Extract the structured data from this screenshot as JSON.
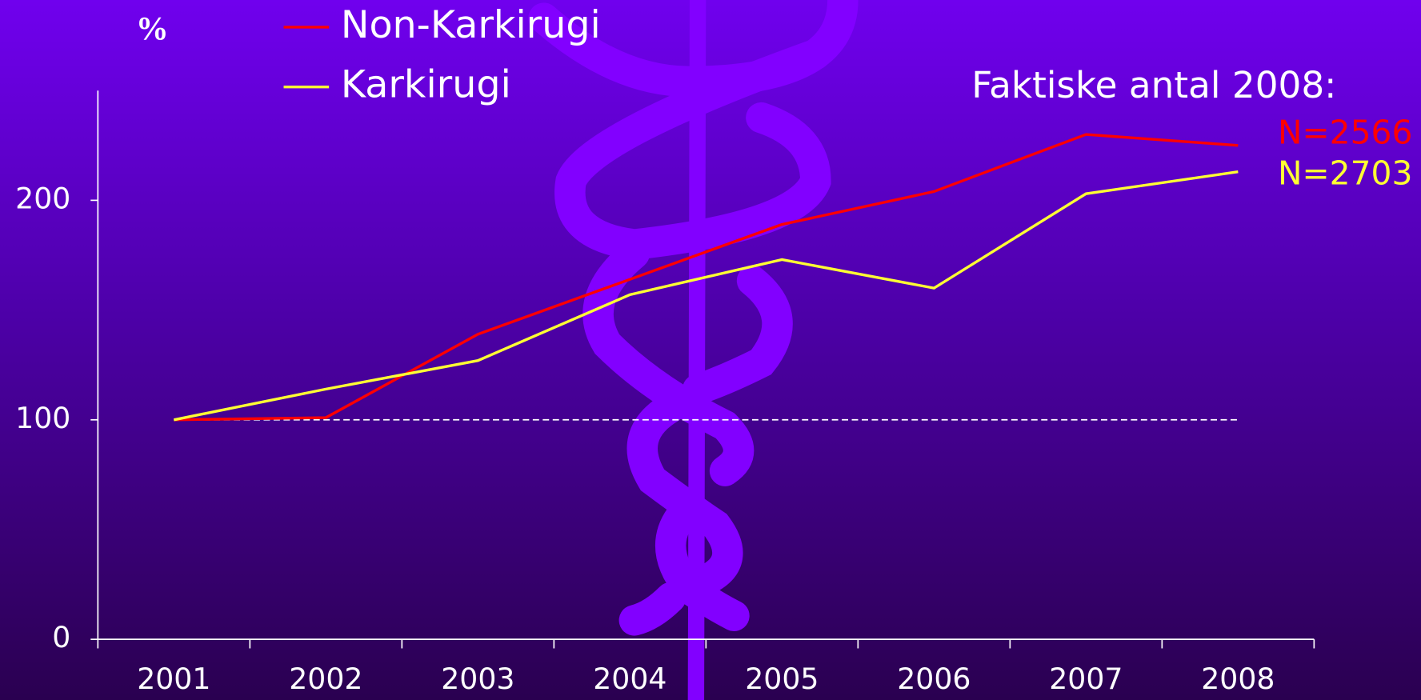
{
  "chart_data": {
    "type": "line",
    "y_label": "%",
    "categories": [
      "2001",
      "2002",
      "2003",
      "2004",
      "2005",
      "2006",
      "2007",
      "2008"
    ],
    "series": [
      {
        "name": "Non-Karkirugi",
        "color": "#ff0000",
        "values": [
          100,
          101,
          139,
          164,
          189,
          204,
          230,
          225
        ]
      },
      {
        "name": "Karkirugi",
        "color": "#ffff33",
        "values": [
          100,
          114,
          127,
          157,
          173,
          160,
          203,
          213
        ]
      }
    ],
    "ylim": [
      0,
      250
    ],
    "yticks": [
      0,
      100,
      200
    ],
    "reference_line": 100,
    "annotation_title": "Faktiske antal 2008:",
    "annotations": [
      {
        "text": "N=2566",
        "color": "#ff0000"
      },
      {
        "text": "N=2703",
        "color": "#ffff33"
      }
    ]
  }
}
